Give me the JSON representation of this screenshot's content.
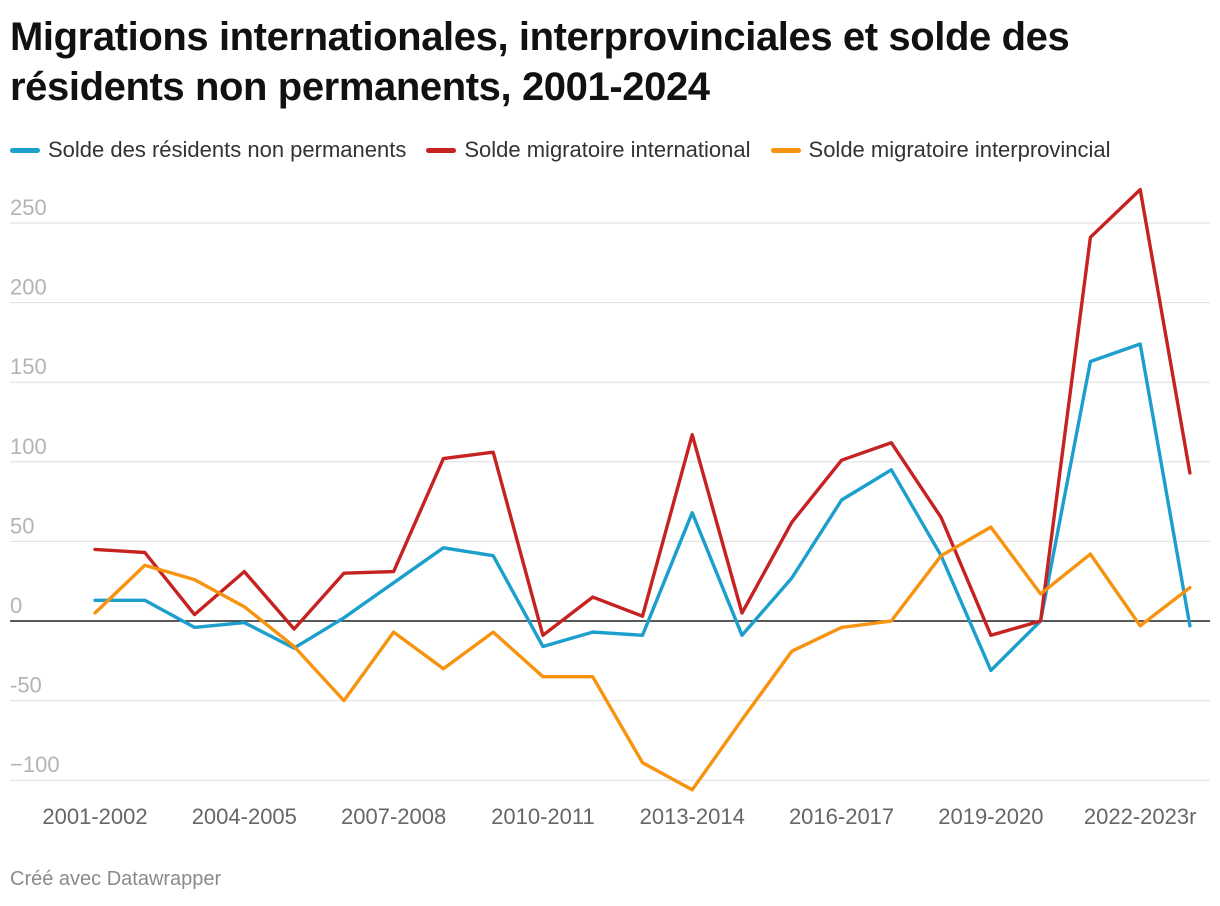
{
  "title": "Migrations internationales, interprovinciales et solde des résidents non permanents, 2001-2024",
  "footer": "Créé avec Datawrapper",
  "chart_data": {
    "type": "line",
    "title": "Migrations internationales, interprovinciales et solde des résidents non permanents, 2001-2024",
    "xlabel": "",
    "ylabel": "",
    "ylim": [
      -110,
      270
    ],
    "yticks": [
      -100,
      -50,
      0,
      50,
      100,
      150,
      200,
      250
    ],
    "ytick_labels": [
      "−100",
      "-50",
      "0",
      "50",
      "100",
      "150",
      "200",
      "250"
    ],
    "x_tick_labels": [
      "2001-2002",
      "2004-2005",
      "2007-2008",
      "2010-2011",
      "2013-2014",
      "2016-2017",
      "2019-2020",
      "2022-2023r"
    ],
    "x_tick_positions": [
      0,
      3,
      6,
      9,
      12,
      15,
      18,
      21
    ],
    "n_points": 23,
    "grid": true,
    "legend_position": "top",
    "series": [
      {
        "name": "Solde des résidents non permanents",
        "color": "#1c9fcc",
        "values": [
          13,
          13,
          -4,
          -1,
          -17,
          2,
          24,
          46,
          41,
          -16,
          -7,
          -9,
          68,
          -9,
          27,
          76,
          95,
          41,
          -31,
          0,
          163,
          174,
          -3
        ]
      },
      {
        "name": "Solde migratoire international",
        "color": "#c62222",
        "values": [
          45,
          43,
          4,
          31,
          -5,
          30,
          31,
          102,
          106,
          -9,
          15,
          3,
          117,
          5,
          62,
          101,
          112,
          65,
          -9,
          0,
          241,
          271,
          93
        ]
      },
      {
        "name": "Solde migratoire interprovincial",
        "color": "#f7930f",
        "values": [
          5,
          35,
          26,
          9,
          -16,
          -50,
          -7,
          -30,
          -7,
          -35,
          -35,
          -89,
          -106,
          -62,
          -19,
          -4,
          0,
          41,
          59,
          17,
          42,
          -3,
          21
        ]
      }
    ]
  }
}
